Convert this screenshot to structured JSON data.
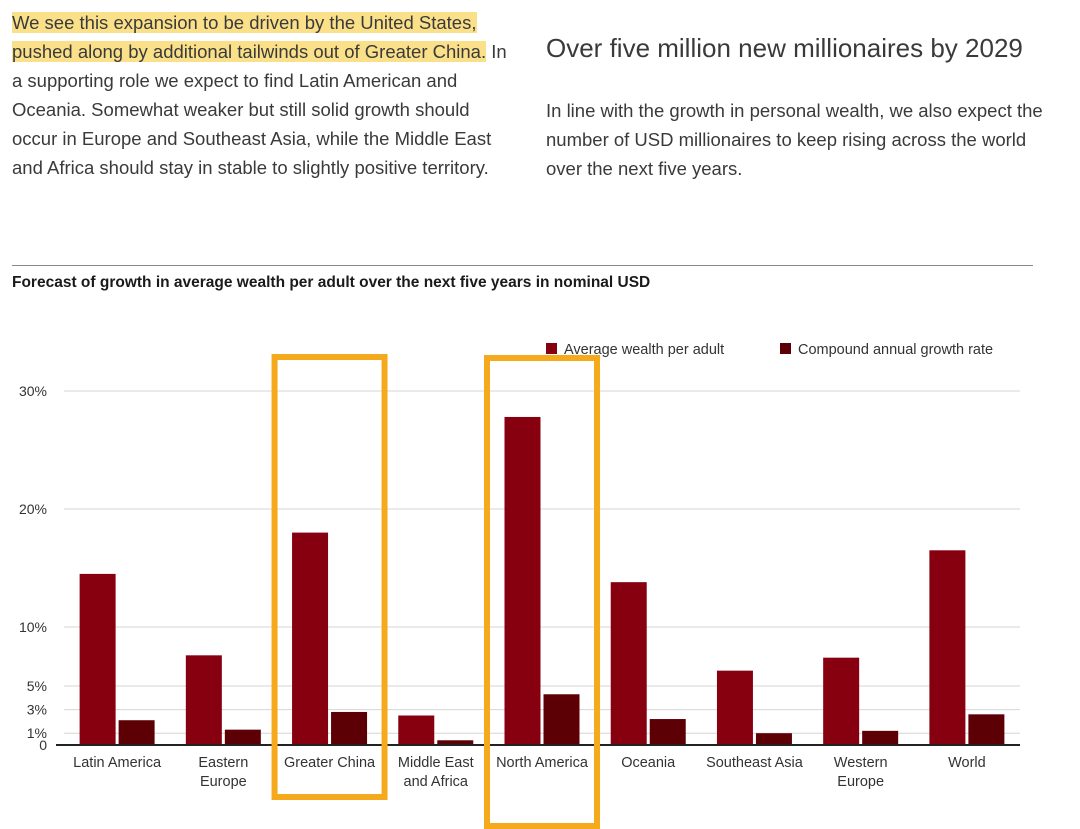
{
  "text": {
    "left_highlight": "We see this expansion to be driven by the United States, pushed along by additional tailwinds out of Greater China.",
    "left_body": "In a supporting role we expect to find Latin American and Oceania. Somewhat weaker but still solid growth should occur in Europe and Southeast Asia, while the Middle East and Africa should stay in stable to slightly positive territory.",
    "right_heading": "Over five million new millionaires by 2029",
    "right_body": "In line with the growth in personal wealth, we also expect the number of USD millionaires to keep rising across the world over the next five years."
  },
  "chart_data": {
    "type": "bar",
    "title": "Forecast of growth in average wealth per adult over the next five years in nominal USD",
    "categories": [
      [
        "Latin America"
      ],
      [
        "Eastern",
        "Europe"
      ],
      [
        "Greater China"
      ],
      [
        "Middle East",
        "and Africa"
      ],
      [
        "North America"
      ],
      [
        "Oceania"
      ],
      [
        "Southeast Asia"
      ],
      [
        "Western",
        "Europe"
      ],
      [
        "World"
      ]
    ],
    "series": [
      {
        "name": "Average wealth per adult",
        "color": "#870010",
        "values": [
          14.5,
          7.6,
          18.0,
          2.5,
          27.8,
          13.8,
          6.3,
          7.4,
          16.5
        ]
      },
      {
        "name": "Compound annual growth rate",
        "color": "#5c0006",
        "values": [
          2.1,
          1.3,
          2.8,
          0.4,
          4.3,
          2.2,
          1.0,
          1.2,
          2.6
        ]
      }
    ],
    "yticks": [
      0,
      1,
      3,
      5,
      10,
      20,
      30
    ],
    "ytick_labels": [
      "0",
      "1%",
      "3%",
      "5%",
      "10%",
      "20%",
      "30%"
    ],
    "ylim": [
      0,
      30
    ],
    "grid": true,
    "legend_position": "top-right",
    "highlight_color": "#f5a91c",
    "highlighted_categories": [
      2,
      4
    ]
  }
}
